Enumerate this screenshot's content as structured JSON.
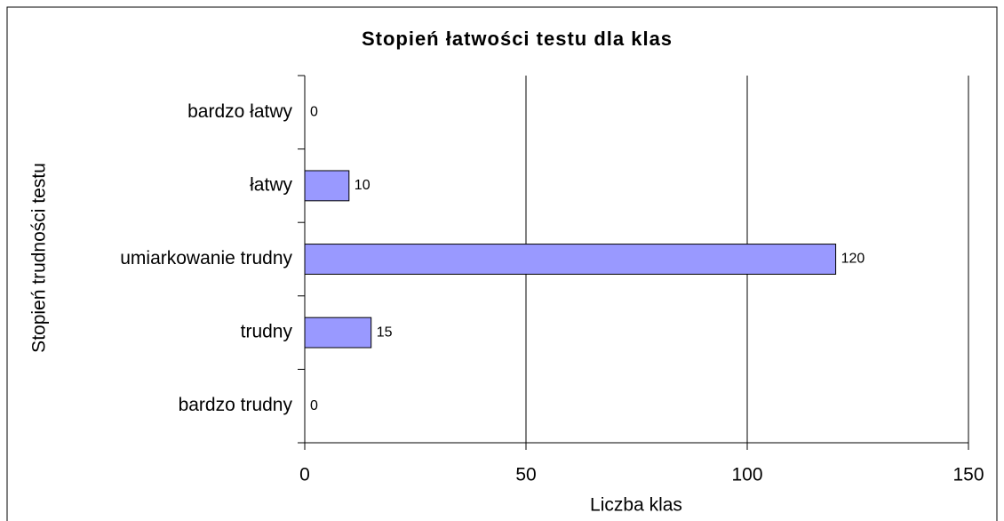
{
  "chart_data": {
    "type": "bar",
    "orientation": "horizontal",
    "title": "Stopień łatwości testu dla klas",
    "x_label": "Liczba klas",
    "y_label": "Stopień trudności testu",
    "categories": [
      "bardzo łatwy",
      "łatwy",
      "umiarkowanie trudny",
      "trudny",
      "bardzo trudny"
    ],
    "values": [
      0,
      10,
      120,
      15,
      0
    ],
    "color": "#9999ff",
    "xlim": [
      0,
      150
    ],
    "xticks": [
      0,
      50,
      100,
      150
    ],
    "grid": true
  }
}
